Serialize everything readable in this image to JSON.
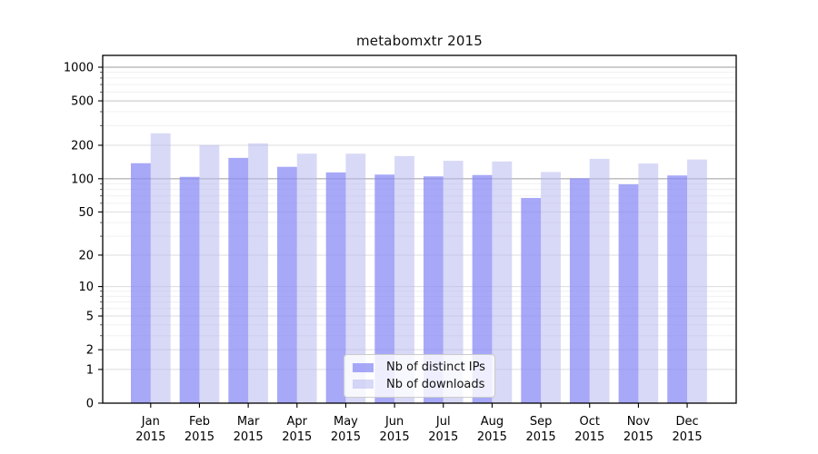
{
  "title": "metabomxtr 2015",
  "chart_data": {
    "type": "bar",
    "categories": [
      "Jan",
      "Feb",
      "Mar",
      "Apr",
      "May",
      "Jun",
      "Jul",
      "Aug",
      "Sep",
      "Oct",
      "Nov",
      "Dec"
    ],
    "category_year": "2015",
    "series": [
      {
        "name": "Nb of distinct IPs",
        "color": "rgba(139,139,246,0.75)",
        "values": [
          138,
          104,
          154,
          128,
          114,
          109,
          105,
          108,
          67,
          101,
          89,
          107
        ]
      },
      {
        "name": "Nb of downloads",
        "color": "rgba(184,184,240,0.55)",
        "values": [
          256,
          201,
          208,
          168,
          168,
          160,
          145,
          143,
          115,
          151,
          137,
          149
        ]
      }
    ],
    "yscale": "log1p",
    "yticks": [
      0,
      1,
      2,
      5,
      10,
      20,
      50,
      100,
      200,
      500,
      1000
    ],
    "ylim": [
      0,
      1280
    ],
    "grid": true,
    "legend_position": "lower center",
    "axis_color": "#000000",
    "grid_major_color": "#dcdcdc",
    "grid_emph_color": "#9b9b9b",
    "grid_minor_color": "#f0f0f0"
  }
}
